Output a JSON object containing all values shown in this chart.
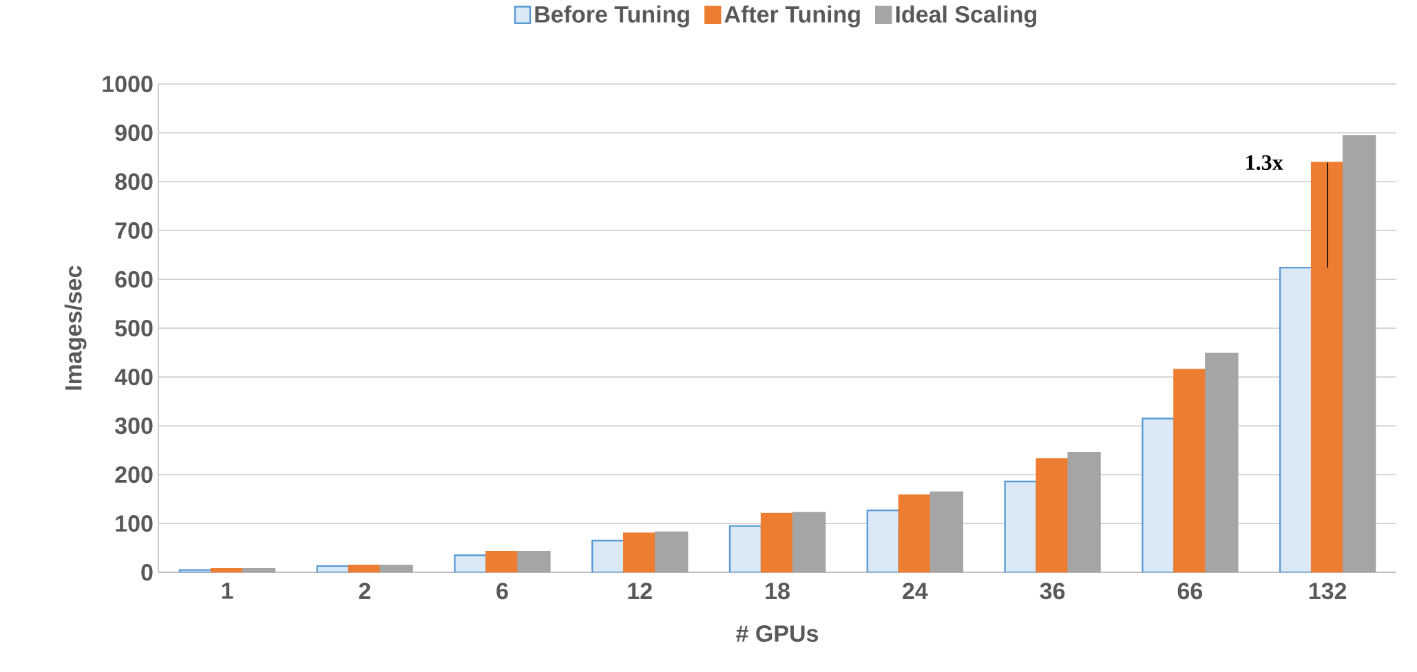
{
  "chart_data": {
    "type": "bar",
    "xlabel": "# GPUs",
    "ylabel": "Images/sec",
    "categories": [
      "1",
      "2",
      "6",
      "12",
      "18",
      "24",
      "36",
      "66",
      "132"
    ],
    "series": [
      {
        "name": "Before Tuning",
        "color": "#5b9bd5",
        "values": [
          5,
          13,
          35,
          65,
          95,
          127,
          186,
          315,
          624
        ]
      },
      {
        "name": "After Tuning",
        "color": "#ed7d31",
        "values": [
          7,
          14,
          42,
          80,
          120,
          158,
          232,
          415,
          839
        ]
      },
      {
        "name": "Ideal Scaling",
        "color": "#a5a5a5",
        "values": [
          7,
          14,
          42,
          82,
          122,
          164,
          245,
          448,
          894
        ]
      }
    ],
    "ylim": [
      0,
      1000
    ],
    "yticks": [
      0,
      100,
      200,
      300,
      400,
      500,
      600,
      700,
      800,
      900,
      1000
    ],
    "grid": "y",
    "legend": "top",
    "annotations": [
      "1.3x"
    ]
  }
}
